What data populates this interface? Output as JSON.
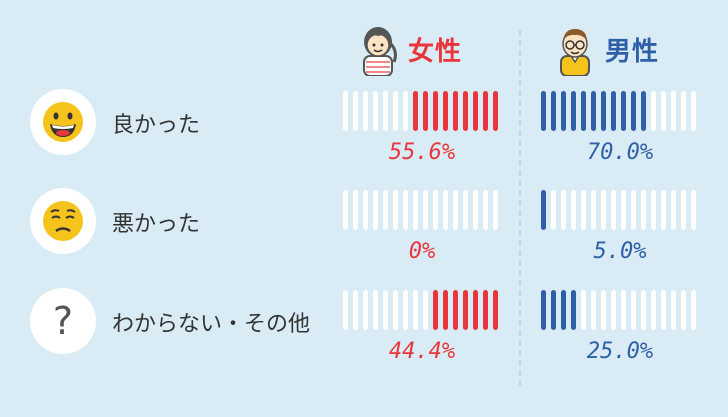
{
  "headers": {
    "female": "女性",
    "male": "男性"
  },
  "colors": {
    "female": "#e8363c",
    "male": "#2f5fa6",
    "empty": "#ffffff"
  },
  "chart_data": {
    "type": "bar",
    "segments_per_bar": 16,
    "series": [
      {
        "name": "女性",
        "values": [
          55.6,
          0,
          44.4
        ]
      },
      {
        "name": "男性",
        "values": [
          70.0,
          5.0,
          25.0
        ]
      }
    ],
    "categories": [
      "良かった",
      "悪かった",
      "わからない・その他"
    ],
    "labels": {
      "female": [
        "55.6%",
        "0%",
        "44.4%"
      ],
      "male": [
        "70.0%",
        "5.0%",
        "25.0%"
      ]
    },
    "icons": [
      "grinning-face-icon",
      "worried-face-icon",
      "question-mark-icon"
    ]
  },
  "qmark": "?"
}
